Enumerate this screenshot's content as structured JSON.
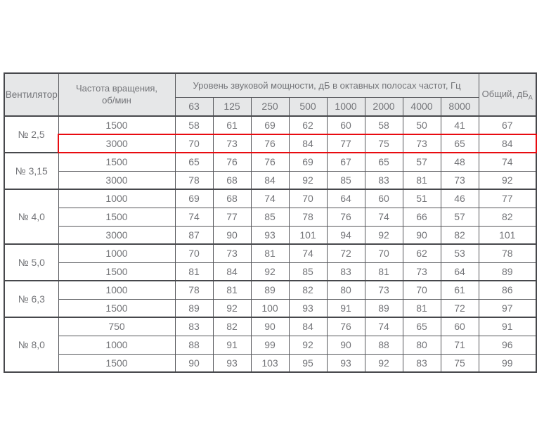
{
  "colors": {
    "header_bg": "#e6e7e8",
    "grid_border": "#55565a",
    "outer_border": "#47484c",
    "text": "#737478",
    "highlight_red": "#e80b10"
  },
  "table": {
    "col1_header": "Вентилятор",
    "col2_header": "Частота вращения,\nоб/мин",
    "band_header": "Уровень звуковой мощности, дБ в октавных полосах частот, Гц",
    "freq_headers": [
      "63",
      "125",
      "250",
      "500",
      "1000",
      "2000",
      "4000",
      "8000"
    ],
    "total_header": "Общий, дБ",
    "total_header_sub": "А",
    "groups": [
      {
        "fan": "№ 2,5",
        "rows": [
          {
            "rpm": "1500",
            "levels": [
              58,
              61,
              69,
              62,
              60,
              58,
              50,
              41
            ],
            "total": 67,
            "highlight": false
          },
          {
            "rpm": "3000",
            "levels": [
              70,
              73,
              76,
              84,
              77,
              75,
              73,
              65
            ],
            "total": 84,
            "highlight": true
          }
        ]
      },
      {
        "fan": "№ 3,15",
        "rows": [
          {
            "rpm": "1500",
            "levels": [
              65,
              76,
              76,
              69,
              67,
              65,
              57,
              48
            ],
            "total": 74,
            "highlight": false
          },
          {
            "rpm": "3000",
            "levels": [
              78,
              68,
              84,
              92,
              85,
              83,
              81,
              73
            ],
            "total": 92,
            "highlight": false
          }
        ]
      },
      {
        "fan": "№ 4,0",
        "rows": [
          {
            "rpm": "1000",
            "levels": [
              69,
              68,
              74,
              70,
              64,
              60,
              51,
              46
            ],
            "total": 77,
            "highlight": false
          },
          {
            "rpm": "1500",
            "levels": [
              74,
              77,
              85,
              78,
              76,
              74,
              66,
              57
            ],
            "total": 82,
            "highlight": false
          },
          {
            "rpm": "3000",
            "levels": [
              87,
              90,
              93,
              101,
              94,
              92,
              90,
              82
            ],
            "total": 101,
            "highlight": false
          }
        ]
      },
      {
        "fan": "№ 5,0",
        "rows": [
          {
            "rpm": "1000",
            "levels": [
              70,
              73,
              81,
              74,
              72,
              70,
              62,
              53
            ],
            "total": 78,
            "highlight": false
          },
          {
            "rpm": "1500",
            "levels": [
              81,
              84,
              92,
              85,
              83,
              81,
              73,
              64
            ],
            "total": 89,
            "highlight": false
          }
        ]
      },
      {
        "fan": "№ 6,3",
        "rows": [
          {
            "rpm": "1000",
            "levels": [
              78,
              81,
              89,
              82,
              80,
              73,
              70,
              61
            ],
            "total": 86,
            "highlight": false
          },
          {
            "rpm": "1500",
            "levels": [
              89,
              92,
              100,
              93,
              91,
              89,
              81,
              72
            ],
            "total": 97,
            "highlight": false
          }
        ]
      },
      {
        "fan": "№ 8,0",
        "rows": [
          {
            "rpm": "750",
            "levels": [
              83,
              82,
              90,
              84,
              76,
              74,
              65,
              60
            ],
            "total": 91,
            "highlight": false
          },
          {
            "rpm": "1000",
            "levels": [
              88,
              91,
              99,
              92,
              90,
              88,
              80,
              71
            ],
            "total": 96,
            "highlight": false
          },
          {
            "rpm": "1500",
            "levels": [
              90,
              93,
              103,
              95,
              93,
              92,
              83,
              75
            ],
            "total": 99,
            "highlight": false
          }
        ]
      }
    ]
  },
  "chart_data": {
    "type": "table",
    "title": "Уровень звуковой мощности, дБ в октавных полосах частот, Гц",
    "columns": [
      "Вентилятор",
      "Частота вращения, об/мин",
      "63",
      "125",
      "250",
      "500",
      "1000",
      "2000",
      "4000",
      "8000",
      "Общий, дБА"
    ],
    "rows": [
      [
        "№ 2,5",
        "1500",
        58,
        61,
        69,
        62,
        60,
        58,
        50,
        41,
        67
      ],
      [
        "№ 2,5",
        "3000",
        70,
        73,
        76,
        84,
        77,
        75,
        73,
        65,
        84
      ],
      [
        "№ 3,15",
        "1500",
        65,
        76,
        76,
        69,
        67,
        65,
        57,
        48,
        74
      ],
      [
        "№ 3,15",
        "3000",
        78,
        68,
        84,
        92,
        85,
        83,
        81,
        73,
        92
      ],
      [
        "№ 4,0",
        "1000",
        69,
        68,
        74,
        70,
        64,
        60,
        51,
        46,
        77
      ],
      [
        "№ 4,0",
        "1500",
        74,
        77,
        85,
        78,
        76,
        74,
        66,
        57,
        82
      ],
      [
        "№ 4,0",
        "3000",
        87,
        90,
        93,
        101,
        94,
        92,
        90,
        82,
        101
      ],
      [
        "№ 5,0",
        "1000",
        70,
        73,
        81,
        74,
        72,
        70,
        62,
        53,
        78
      ],
      [
        "№ 5,0",
        "1500",
        81,
        84,
        92,
        85,
        83,
        81,
        73,
        64,
        89
      ],
      [
        "№ 6,3",
        "1000",
        78,
        81,
        89,
        82,
        80,
        73,
        70,
        61,
        86
      ],
      [
        "№ 6,3",
        "1500",
        89,
        92,
        100,
        93,
        91,
        89,
        81,
        72,
        97
      ],
      [
        "№ 8,0",
        "750",
        83,
        82,
        90,
        84,
        76,
        74,
        65,
        60,
        91
      ],
      [
        "№ 8,0",
        "1000",
        88,
        91,
        99,
        92,
        90,
        88,
        80,
        71,
        96
      ],
      [
        "№ 8,0",
        "1500",
        90,
        93,
        103,
        95,
        93,
        92,
        83,
        75,
        99
      ]
    ],
    "highlighted_row": [
      "№ 2,5",
      "3000"
    ]
  }
}
